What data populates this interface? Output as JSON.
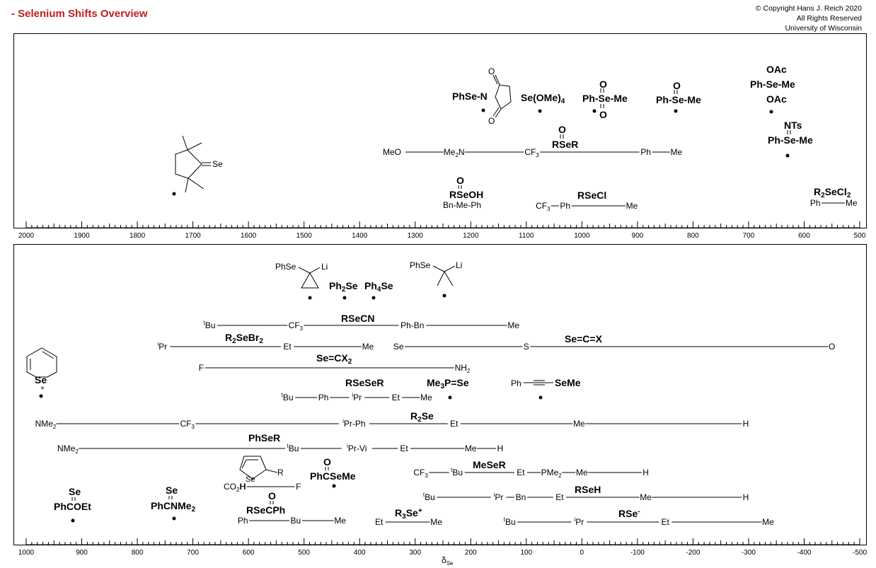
{
  "header": {
    "title": "- Selenium Shifts Overview",
    "copyright": [
      "© Copyright Hans J. Reich 2020",
      "All Rights Reserved",
      "University of Wisconsin"
    ]
  },
  "top_axis": {
    "range": [
      2000,
      500
    ],
    "labels": [
      "2000",
      "1900",
      "1800",
      "1700",
      "1600",
      "1500",
      "1400",
      "1300",
      "1200",
      "1100",
      "1000",
      "900",
      "800",
      "700",
      "600",
      "500"
    ]
  },
  "bottom_axis": {
    "range": [
      1000,
      -500
    ],
    "title_main": "δ",
    "title_sub": "Se",
    "labels": [
      "1000",
      "900",
      "800",
      "700",
      "600",
      "500",
      "400",
      "300",
      "200",
      "100",
      "0",
      "-100",
      "-200",
      "-300",
      "-400",
      "-500"
    ]
  },
  "top_panel": {
    "selenoketone": {
      "label": "Se",
      "dot": 1735
    },
    "phse_succinimide": {
      "label": "PhSe-N",
      "o": "O",
      "dot": 1180
    },
    "se_ome4": {
      "label": "Se(OMe)",
      "sub": "4",
      "dot": 1075
    },
    "selenone": {
      "label": "Ph-Se-Me",
      "o": "O",
      "dot": 975
    },
    "selenoxide": {
      "label": "Ph-Se-Me",
      "o": "O",
      "dot": 833
    },
    "diacetoxy": {
      "oac1": "OAc",
      "label": "Ph-Se-Me",
      "oac2": "OAc",
      "dot": 662
    },
    "selenilimine": {
      "nts": "NTs",
      "label": "Ph-Se-Me",
      "dot": 632
    },
    "rse_o_r": {
      "name": "RSeR",
      "o": "O",
      "left_label": "MeO",
      "labels": [
        {
          "t": "Me",
          "s": "2",
          "t2": "N",
          "v": 1230
        },
        {
          "t": "CF",
          "s": "3",
          "v": 1090
        },
        {
          "t": "Ph",
          "v": 885
        },
        {
          "t": "Me",
          "v": 830
        }
      ]
    },
    "seleninic_acid": {
      "name": "RSeOH",
      "o": "O",
      "row": "Bn-Me-Ph"
    },
    "rsecl": {
      "name": "RSeCl",
      "labels": [
        {
          "t": "CF",
          "s": "3",
          "v": 1070
        },
        {
          "t": "Ph",
          "v": 1030
        },
        {
          "t": "Me",
          "v": 910
        }
      ]
    },
    "r2secl2": {
      "name": "R",
      "name_sub": "2",
      "name2": "SeCl",
      "name_sub2": "2",
      "labels": [
        {
          "t": "Ph",
          "v": 580
        },
        {
          "t": "Me",
          "v": 515
        }
      ]
    }
  },
  "bottom_panel": {
    "lithio_cyclopropyl": {
      "phse": "PhSe",
      "li": "Li",
      "dot": 497
    },
    "ph2se": {
      "label": "Ph",
      "sub": "2",
      "label2": "Se",
      "dot": 433
    },
    "ph4se": {
      "label": "Ph",
      "sub": "4",
      "label2": "Se",
      "dot": 380
    },
    "lithio_tbu": {
      "phse": "PhSe",
      "li": "Li",
      "dot": 246
    },
    "rsecn": {
      "name": "RSeCN",
      "labels": [
        {
          "pre": "t",
          "t": "Bu",
          "v": 670
        },
        {
          "t": "CF",
          "s": "3",
          "v": 515
        },
        {
          "t": "Ph-Bn",
          "v": 305
        },
        {
          "t": "Me",
          "v": 123
        }
      ]
    },
    "r2sebr2": {
      "name": "R",
      "name_sub": "2",
      "name2": "SeBr",
      "name_sub2": "2",
      "labels": [
        {
          "pre": "i",
          "t": "Pr",
          "v": 755
        },
        {
          "t": "Et",
          "v": 530
        },
        {
          "t": "Me",
          "v": 385
        }
      ]
    },
    "sex": {
      "name": "Se=C=X",
      "labels": [
        {
          "t": "Se",
          "v": 330
        },
        {
          "t": "S",
          "v": 100
        },
        {
          "t": "O",
          "v": -450
        }
      ]
    },
    "secx2": {
      "name": "Se=CX",
      "name_sub": "2",
      "labels": [
        {
          "t": "F",
          "v": 685
        },
        {
          "t": "NH",
          "s": "2",
          "v": 215
        }
      ]
    },
    "selenopyrylium": {
      "label": "Se",
      "plus": "+",
      "dot": 980
    },
    "rsesr": {
      "name": "RSeSeR",
      "labels": [
        {
          "pre": "t",
          "t": "Bu",
          "v": 530
        },
        {
          "t": "Ph",
          "v": 465
        },
        {
          "pre": "i",
          "t": "Pr",
          "v": 405
        },
        {
          "t": "Et",
          "v": 335
        },
        {
          "t": "Me",
          "v": 280
        }
      ]
    },
    "me3pse": {
      "name": "Me",
      "name_sub": "3",
      "name2": "P=Se",
      "dot": 238
    },
    "alkynyl": {
      "left": "Ph",
      "right": "SeMe",
      "dot": 75
    },
    "r2se": {
      "name": "R",
      "name_sub": "2",
      "name2": "Se",
      "labels": [
        {
          "t": "NMe",
          "s": "2",
          "v": 965
        },
        {
          "t": "CF",
          "s": "3",
          "v": 710
        },
        {
          "pre": "i",
          "t": "Pr-Ph",
          "v": 410
        },
        {
          "t": "Et",
          "v": 230
        },
        {
          "t": "Me",
          "v": 5
        },
        {
          "t": "H",
          "v": -295
        }
      ]
    },
    "phser": {
      "name": "PhSeR",
      "labels": [
        {
          "t": "NMe",
          "s": "2",
          "v": 925
        },
        {
          "pre": "t",
          "t": "Bu",
          "v": 520
        },
        {
          "pre": "i",
          "t": "Pr-Vi",
          "v": 405
        },
        {
          "t": "Et",
          "v": 320
        },
        {
          "t": "Me",
          "v": 200
        },
        {
          "t": "H",
          "v": 147
        }
      ]
    },
    "selenophene": {
      "se": "Se",
      "r": "R"
    },
    "phcosme": {
      "label": "PhCSeMe",
      "o": "O",
      "dot": 450
    },
    "mesr": {
      "name": "MeSeR",
      "labels": [
        {
          "t": "CF",
          "s": "3",
          "v": 290
        },
        {
          "pre": "t",
          "t": "Bu",
          "v": 225
        },
        {
          "t": "Et",
          "v": 110
        },
        {
          "t": "PMe",
          "s": "2",
          "v": 55
        },
        {
          "t": "Me",
          "v": 0
        },
        {
          "t": "H",
          "v": -115
        }
      ]
    },
    "co2h": {
      "labels": [
        {
          "t": "CO",
          "s": "2",
          "t2": "H",
          "v": 625
        },
        {
          "t": "H",
          "v": 610
        },
        {
          "t": "F",
          "v": 510
        }
      ]
    },
    "phcseoet": {
      "se": "Se",
      "label": "PhCOEt",
      "dot": 918
    },
    "phcsenme2": {
      "se": "Se",
      "label": "PhCNMe",
      "sub": "2",
      "dot": 735
    },
    "rsecph": {
      "o": "O",
      "name": "RSeCPh",
      "labels": [
        {
          "t": "Ph",
          "v": 610
        },
        {
          "t": "Bu",
          "v": 515
        },
        {
          "t": "Me",
          "v": 435
        }
      ]
    },
    "r3se": {
      "name": "R",
      "name_sub": "3",
      "name2": "Se",
      "sup": "+",
      "labels": [
        {
          "t": "Et",
          "v": 365
        },
        {
          "t": "Me",
          "v": 262
        }
      ]
    },
    "rseh": {
      "name": "RSeH",
      "labels": [
        {
          "pre": "t",
          "t": "Bu",
          "v": 275
        },
        {
          "pre": "i",
          "t": "Pr",
          "v": 150
        },
        {
          "t": "Bn",
          "v": 110
        },
        {
          "t": "Et",
          "v": 40
        },
        {
          "t": "Me",
          "v": -115
        },
        {
          "t": "H",
          "v": -295
        }
      ]
    },
    "rse_anion": {
      "name": "RSe",
      "sup": "-",
      "labels": [
        {
          "pre": "t",
          "t": "Bu",
          "v": 130
        },
        {
          "pre": "i",
          "t": "Pr",
          "v": 5
        },
        {
          "t": "Et",
          "v": -150
        },
        {
          "t": "Me",
          "v": -335
        }
      ]
    }
  }
}
